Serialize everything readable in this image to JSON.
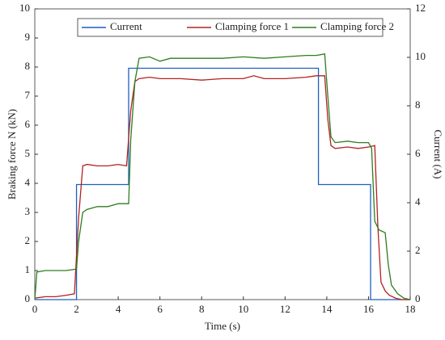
{
  "chart_data": {
    "type": "line",
    "xlabel": "Time (s)",
    "ylabel": "Braking force N (kN)",
    "y2label": "Current (A)",
    "xlim": [
      0,
      18
    ],
    "xticks": [
      0,
      2,
      4,
      6,
      8,
      10,
      12,
      14,
      16,
      18
    ],
    "ylim": [
      0,
      10
    ],
    "yticks": [
      0,
      1,
      2,
      3,
      4,
      5,
      6,
      7,
      8,
      9,
      10
    ],
    "y2lim": [
      0,
      12
    ],
    "y2ticks": [
      0,
      2,
      4,
      6,
      8,
      10,
      12
    ],
    "legend": "top",
    "series": [
      {
        "name": "Current",
        "color": "#1f5fbf",
        "axis": "y2",
        "x": [
          0,
          2,
          2,
          4.5,
          4.5,
          13.6,
          13.6,
          16.1,
          16.1,
          18
        ],
        "values": [
          0,
          0,
          4.75,
          4.75,
          9.55,
          9.55,
          4.75,
          4.75,
          0,
          0
        ]
      },
      {
        "name": "Clamping force 1",
        "color": "#b22222",
        "x": [
          0,
          0.5,
          1,
          1.5,
          1.9,
          2.1,
          2.3,
          2.5,
          3,
          3.5,
          4,
          4.4,
          4.6,
          4.8,
          5,
          5.5,
          6,
          6.5,
          7,
          8,
          9,
          10,
          10.5,
          11,
          12,
          13,
          13.5,
          13.9,
          14.05,
          14.2,
          14.4,
          15,
          15.5,
          16,
          16.3,
          16.45,
          16.6,
          16.8,
          17,
          17.3,
          17.6,
          18
        ],
        "values": [
          0.05,
          0.1,
          0.1,
          0.15,
          0.2,
          2.8,
          4.6,
          4.65,
          4.6,
          4.6,
          4.65,
          4.6,
          6.5,
          7.5,
          7.6,
          7.65,
          7.6,
          7.6,
          7.6,
          7.55,
          7.6,
          7.6,
          7.7,
          7.6,
          7.6,
          7.65,
          7.7,
          7.7,
          6.2,
          5.3,
          5.2,
          5.25,
          5.2,
          5.25,
          5.3,
          2.5,
          0.6,
          0.3,
          0.15,
          0.05,
          0,
          0
        ]
      },
      {
        "name": "Clamping force 2",
        "color": "#2e7d1e",
        "x": [
          0,
          0.1,
          0.5,
          1,
          1.5,
          2,
          2.1,
          2.3,
          2.5,
          3,
          3.5,
          4,
          4.5,
          4.6,
          4.8,
          5,
          5.5,
          6,
          6.5,
          7,
          8,
          9,
          10,
          11,
          12,
          13,
          13.5,
          13.9,
          14.05,
          14.2,
          14.4,
          15,
          15.5,
          16,
          16.15,
          16.3,
          16.5,
          16.8,
          16.95,
          17.1,
          17.4,
          17.7,
          18
        ],
        "values": [
          0,
          0.95,
          1.0,
          1.0,
          1.0,
          1.05,
          2.0,
          3.0,
          3.1,
          3.2,
          3.2,
          3.3,
          3.3,
          5.5,
          7.5,
          8.3,
          8.35,
          8.2,
          8.3,
          8.3,
          8.3,
          8.3,
          8.35,
          8.3,
          8.35,
          8.4,
          8.4,
          8.45,
          7.0,
          5.6,
          5.4,
          5.45,
          5.4,
          5.4,
          5.2,
          2.7,
          2.4,
          2.3,
          1.2,
          0.5,
          0.2,
          0.05,
          0
        ]
      }
    ]
  }
}
